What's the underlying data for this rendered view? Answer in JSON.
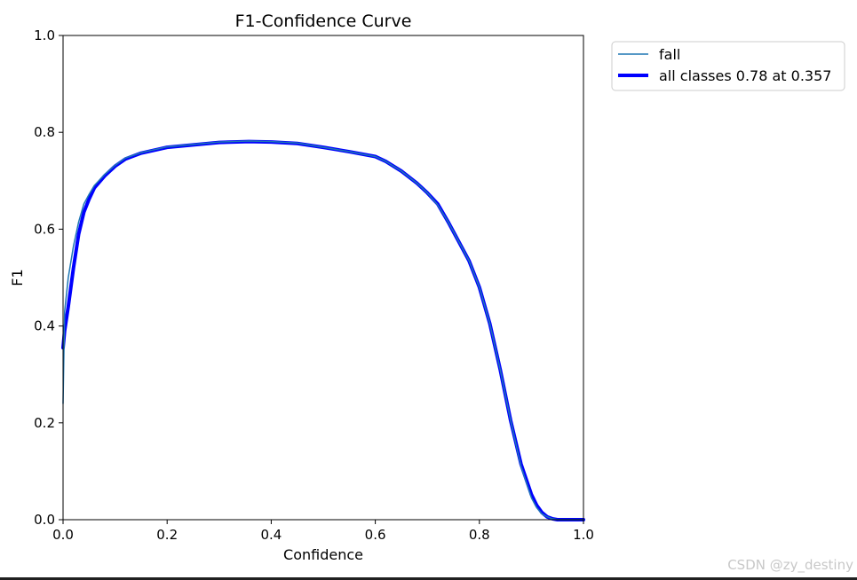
{
  "chart_data": {
    "type": "line",
    "title": "F1-Confidence Curve",
    "xlabel": "Confidence",
    "ylabel": "F1",
    "xlim": [
      0,
      1
    ],
    "ylim": [
      0,
      1
    ],
    "xticks": [
      "0.0",
      "0.2",
      "0.4",
      "0.6",
      "0.8",
      "1.0"
    ],
    "yticks": [
      "0.0",
      "0.2",
      "0.4",
      "0.6",
      "0.8",
      "1.0"
    ],
    "grid": false,
    "legend_position": "outside-upper-right",
    "series": [
      {
        "name": "fall",
        "color": "#1f77b4",
        "line_style": "thin",
        "x": [
          0.0,
          0.003,
          0.01,
          0.02,
          0.03,
          0.04,
          0.05,
          0.06,
          0.08,
          0.1,
          0.12,
          0.15,
          0.2,
          0.25,
          0.3,
          0.357,
          0.4,
          0.45,
          0.5,
          0.55,
          0.6,
          0.62,
          0.65,
          0.68,
          0.7,
          0.72,
          0.74,
          0.76,
          0.78,
          0.8,
          0.82,
          0.84,
          0.86,
          0.88,
          0.9,
          0.91,
          0.92,
          0.93,
          0.94,
          0.95,
          0.97,
          1.0
        ],
        "y": [
          0.24,
          0.43,
          0.5,
          0.565,
          0.615,
          0.652,
          0.672,
          0.69,
          0.713,
          0.732,
          0.747,
          0.758,
          0.77,
          0.775,
          0.78,
          0.782,
          0.781,
          0.778,
          0.769,
          0.76,
          0.75,
          0.74,
          0.72,
          0.695,
          0.675,
          0.65,
          0.615,
          0.575,
          0.535,
          0.48,
          0.405,
          0.31,
          0.205,
          0.11,
          0.045,
          0.025,
          0.012,
          0.006,
          0.002,
          0.0,
          0.0,
          0.0
        ]
      },
      {
        "name": "all classes 0.78 at 0.357",
        "color": "#0000ff",
        "line_style": "thick",
        "x": [
          0.0,
          0.003,
          0.01,
          0.02,
          0.03,
          0.04,
          0.05,
          0.06,
          0.08,
          0.1,
          0.12,
          0.15,
          0.2,
          0.25,
          0.3,
          0.357,
          0.4,
          0.45,
          0.5,
          0.55,
          0.6,
          0.62,
          0.65,
          0.68,
          0.7,
          0.72,
          0.74,
          0.76,
          0.78,
          0.8,
          0.82,
          0.84,
          0.86,
          0.88,
          0.9,
          0.91,
          0.92,
          0.93,
          0.94,
          0.95,
          0.97,
          1.0
        ],
        "y": [
          0.355,
          0.39,
          0.44,
          0.52,
          0.59,
          0.635,
          0.662,
          0.685,
          0.71,
          0.73,
          0.745,
          0.757,
          0.769,
          0.774,
          0.779,
          0.781,
          0.78,
          0.777,
          0.769,
          0.76,
          0.75,
          0.74,
          0.72,
          0.695,
          0.675,
          0.652,
          0.615,
          0.575,
          0.535,
          0.48,
          0.405,
          0.31,
          0.205,
          0.115,
          0.052,
          0.03,
          0.015,
          0.006,
          0.002,
          0.0,
          0.0,
          0.0
        ]
      }
    ]
  },
  "watermark": "CSDN @zy_destiny"
}
